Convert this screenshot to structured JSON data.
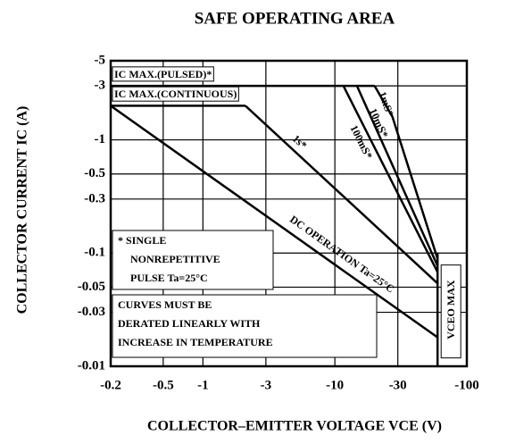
{
  "chart_data": {
    "type": "line",
    "title": "SAFE OPERATING AREA",
    "x_label": "COLLECTOR–EMITTER VOLTAGE VCE (V)",
    "y_label": "COLLECTOR CURRENT IC (A)",
    "xscale": "log",
    "yscale": "log",
    "grid": true,
    "color": "#000000",
    "xlim": [
      -0.2,
      -100
    ],
    "xticks": [
      -0.2,
      -0.5,
      -1,
      -3,
      -10,
      -30,
      -100
    ],
    "ylim": [
      -0.01,
      -5
    ],
    "yticks": [
      -5,
      -3,
      -1,
      -0.5,
      -0.3,
      -0.1,
      -0.05,
      -0.03,
      -0.01
    ],
    "series": [
      {
        "name": "IC MAX.(PULSED)*",
        "x": [
          -0.2,
          -20
        ],
        "values": [
          -3,
          -3
        ]
      },
      {
        "name": "IC MAX.(CONTINUOUS)",
        "x": [
          -0.2,
          -2.1
        ],
        "values": [
          -2,
          -2
        ]
      },
      {
        "name": "DC OPERATION Ta=25°C",
        "x": [
          -0.2,
          -60
        ],
        "values": [
          -2,
          -0.018
        ]
      },
      {
        "name": "1s*",
        "x": [
          -2.1,
          -60
        ],
        "values": [
          -2,
          -0.054
        ]
      },
      {
        "name": "100mS*",
        "x": [
          -11.6,
          -60
        ],
        "values": [
          -3,
          -0.068
        ]
      },
      {
        "name": "10mS*",
        "x": [
          -14.7,
          -60
        ],
        "values": [
          -3,
          -0.077
        ]
      },
      {
        "name": "1mS*",
        "x": [
          -20,
          -27.3,
          -60
        ],
        "values": [
          -3,
          -1.6,
          -0.089
        ]
      },
      {
        "name": "VCEO MAX",
        "x": [
          -60,
          -60
        ],
        "values": [
          -0.1,
          -0.01
        ]
      }
    ],
    "notes": [
      [
        "* SINGLE",
        "NONREPETITIVE",
        "PULSE Ta=25°C"
      ],
      [
        "CURVES MUST BE",
        "DERATED LINEARLY WITH",
        "INCREASE IN TEMPERATURE"
      ]
    ]
  }
}
